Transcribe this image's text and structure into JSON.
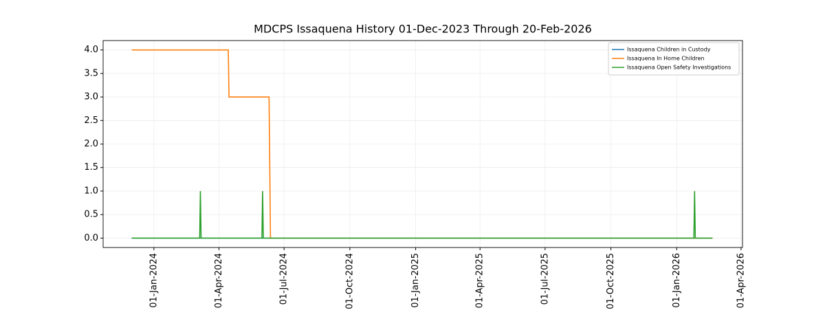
{
  "chart_data": {
    "type": "line",
    "title": "MDCPS Issaquena History 01-Dec-2023 Through 20-Feb-2026",
    "x": [
      "2023-12-01",
      "2024-03-05",
      "2024-03-06",
      "2024-03-07",
      "2024-04-14",
      "2024-04-15",
      "2024-05-31",
      "2024-06-01",
      "2024-06-02",
      "2024-06-10",
      "2024-06-12",
      "2026-01-25",
      "2026-01-26",
      "2026-01-27",
      "2026-02-20"
    ],
    "series": [
      {
        "name": "Issaquena Children in Custody",
        "color": "#1f77b4",
        "values": [
          0,
          0,
          0,
          0,
          0,
          0,
          0,
          0,
          0,
          0,
          0,
          0,
          0,
          0,
          0
        ]
      },
      {
        "name": "Issaquena In Home Children",
        "color": "#ff7f0e",
        "values": [
          4,
          4,
          4,
          4,
          4,
          3,
          3,
          3,
          3,
          3,
          0,
          0,
          0,
          0,
          0
        ]
      },
      {
        "name": "Issaquena Open Safety Investigations",
        "color": "#2ca02c",
        "values": [
          0,
          0,
          1,
          0,
          0,
          0,
          0,
          1,
          0,
          0,
          0,
          0,
          1,
          0,
          0
        ]
      }
    ],
    "xlim": [
      "2023-10-22",
      "2026-04-03"
    ],
    "xticks": [
      {
        "value": "2024-01-01",
        "label": "01-Jan-2024"
      },
      {
        "value": "2024-04-01",
        "label": "01-Apr-2024"
      },
      {
        "value": "2024-07-01",
        "label": "01-Jul-2024"
      },
      {
        "value": "2024-10-01",
        "label": "01-Oct-2024"
      },
      {
        "value": "2025-01-01",
        "label": "01-Jan-2025"
      },
      {
        "value": "2025-04-01",
        "label": "01-Apr-2025"
      },
      {
        "value": "2025-07-01",
        "label": "01-Jul-2025"
      },
      {
        "value": "2025-10-01",
        "label": "01-Oct-2025"
      },
      {
        "value": "2026-01-01",
        "label": "01-Jan-2026"
      },
      {
        "value": "2026-04-01",
        "label": "01-Apr-2026"
      }
    ],
    "ylim": [
      -0.2,
      4.2
    ],
    "yticks": [
      {
        "value": 0,
        "label": "0.0"
      },
      {
        "value": 0.5,
        "label": "0.5"
      },
      {
        "value": 1,
        "label": "1.0"
      },
      {
        "value": 1.5,
        "label": "1.5"
      },
      {
        "value": 2,
        "label": "2.0"
      },
      {
        "value": 2.5,
        "label": "2.5"
      },
      {
        "value": 3,
        "label": "3.0"
      },
      {
        "value": 3.5,
        "label": "3.5"
      },
      {
        "value": 4,
        "label": "4.0"
      }
    ],
    "grid": true,
    "legend": "upper right"
  }
}
